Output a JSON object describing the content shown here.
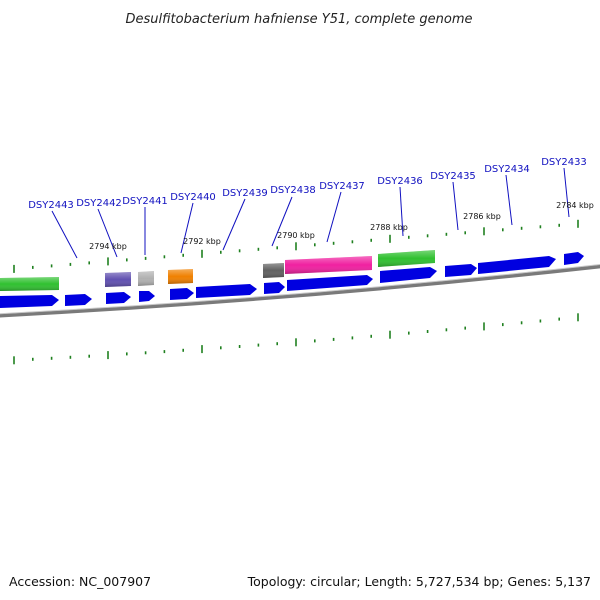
{
  "title": "Desulfitobacterium hafniense Y51, complete genome",
  "footer": {
    "accession": "Accession: NC_007907",
    "summary": "Topology: circular; Length: 5,727,534 bp; Genes: 5,137"
  },
  "gene_labels": [
    "DSY2443",
    "DSY2442",
    "DSY2441",
    "DSY2440",
    "DSY2439",
    "DSY2438",
    "DSY2437",
    "DSY2436",
    "DSY2435",
    "DSY2434",
    "DSY2433"
  ],
  "kbp_labels": [
    "2794 kbp",
    "2792 kbp",
    "2790 kbp",
    "2788 kbp",
    "2786 kbp",
    "2784 kbp"
  ],
  "colors": {
    "cds_blue": "#0000e0",
    "rna_green": "#30c030",
    "purple": "#6050b0",
    "grey": "#b0b0b0",
    "orange": "#f08000",
    "dark_grey": "#606060",
    "magenta": "#f020a0",
    "tick_green": "#208020",
    "backbone": "#808080"
  }
}
